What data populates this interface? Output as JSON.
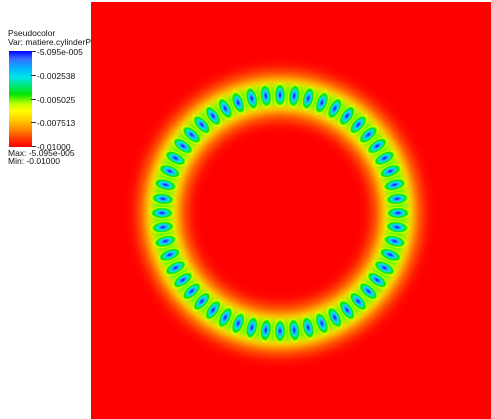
{
  "legend": {
    "title": "Pseudocolor",
    "var_label": "Var: matiere.cylinderPGPhase",
    "ticks": [
      "-5.095e-005",
      "-0.002538",
      "-0.005025",
      "-0.007513",
      "-0.01000"
    ],
    "max_label": "Max: -5.095e-005",
    "min_label": "Min: -0.01000",
    "colors": [
      "#0000ff",
      "#00d5ff",
      "#00e600",
      "#ffff00",
      "#ff8800",
      "#ff0000"
    ]
  },
  "field": {
    "background_color": "#ff0000",
    "ring_spot_count": 52
  }
}
